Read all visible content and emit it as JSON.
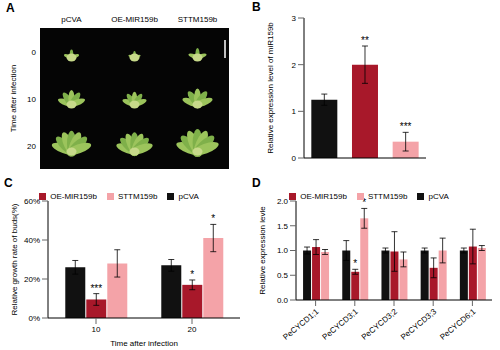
{
  "image_panel": {
    "panel_label": "A",
    "columns": [
      "pCVA",
      "OE-MIR159b",
      "STTM159b"
    ],
    "rows": [
      "0",
      "10",
      "20"
    ],
    "row_axis_label": "Time after infection"
  },
  "chart_data": [
    {
      "panel_label": "B",
      "type": "bar",
      "y_label": "Relative expression level of miR159b",
      "categories": [
        null,
        null,
        null
      ],
      "values": [
        1.25,
        2.0,
        0.35
      ],
      "errors": [
        0.12,
        0.4,
        0.2
      ],
      "annotations": [
        null,
        "**",
        "***"
      ],
      "colors": [
        "#111111",
        "#a8182a",
        "#f4a3a8"
      ],
      "ylim": [
        0,
        3
      ],
      "yticks": [
        0,
        1,
        2,
        3
      ],
      "tick_labels": "y"
    },
    {
      "panel_label": "C",
      "type": "bar",
      "y_label": "Relative growth rate of buds(%)",
      "x_label": "Time after infection",
      "categories": [
        "10",
        "20"
      ],
      "series": [
        {
          "name": "pCVA",
          "color": "#111111",
          "values": [
            26,
            27
          ],
          "errors": [
            3.5,
            3
          ],
          "annotations": [
            null,
            null
          ]
        },
        {
          "name": "OE-MIR159b",
          "color": "#a8182a",
          "values": [
            9.5,
            17
          ],
          "errors": [
            3,
            2.5
          ],
          "annotations": [
            "***",
            "*"
          ]
        },
        {
          "name": "STTM159b",
          "color": "#f4a3a8",
          "values": [
            28,
            41
          ],
          "errors": [
            7,
            7
          ],
          "annotations": [
            null,
            "*"
          ]
        }
      ],
      "ylim": [
        0,
        60
      ],
      "yticks": [
        {
          "value": 0,
          "label": "0%"
        },
        {
          "value": 20,
          "label": "20%"
        },
        {
          "value": 40,
          "label": "40%"
        },
        {
          "value": 60,
          "label": "60%"
        }
      ],
      "legend": "top"
    },
    {
      "panel_label": "D",
      "type": "bar",
      "y_label": "Relative expression levle",
      "categories": [
        "PeCYCD1;1",
        "PeCYCD3;1",
        "PeCYCD3;2",
        "PeCYCD3;3",
        "PeCYCD6;1"
      ],
      "series": [
        {
          "name": "pCVA",
          "color": "#111111",
          "values": [
            1,
            1,
            1,
            1,
            1
          ],
          "errors": [
            0.07,
            0.2,
            0.05,
            0.05,
            0.05
          ],
          "annotations": [
            null,
            null,
            null,
            null,
            null
          ]
        },
        {
          "name": "OE-MIR159b",
          "color": "#a8182a",
          "values": [
            1.07,
            0.57,
            0.98,
            0.65,
            1.08
          ],
          "errors": [
            0.15,
            0.05,
            0.4,
            0.2,
            0.35
          ],
          "annotations": [
            null,
            "*",
            null,
            null,
            null
          ]
        },
        {
          "name": "STTM159b",
          "color": "#f4a3a8",
          "values": [
            0.97,
            1.65,
            0.82,
            1.0,
            1.05
          ],
          "errors": [
            0.05,
            0.2,
            0.15,
            0.25,
            0.05
          ],
          "annotations": [
            null,
            "*",
            null,
            null,
            null
          ]
        }
      ],
      "ylim": [
        0,
        2
      ],
      "yticks": [
        {
          "value": 0,
          "label": "0.0"
        },
        {
          "value": 0.5,
          "label": "0.5"
        },
        {
          "value": 1,
          "label": "1.0"
        },
        {
          "value": 1.5,
          "label": "1.5"
        },
        {
          "value": 2,
          "label": "2.0"
        }
      ],
      "legend": "top"
    }
  ]
}
